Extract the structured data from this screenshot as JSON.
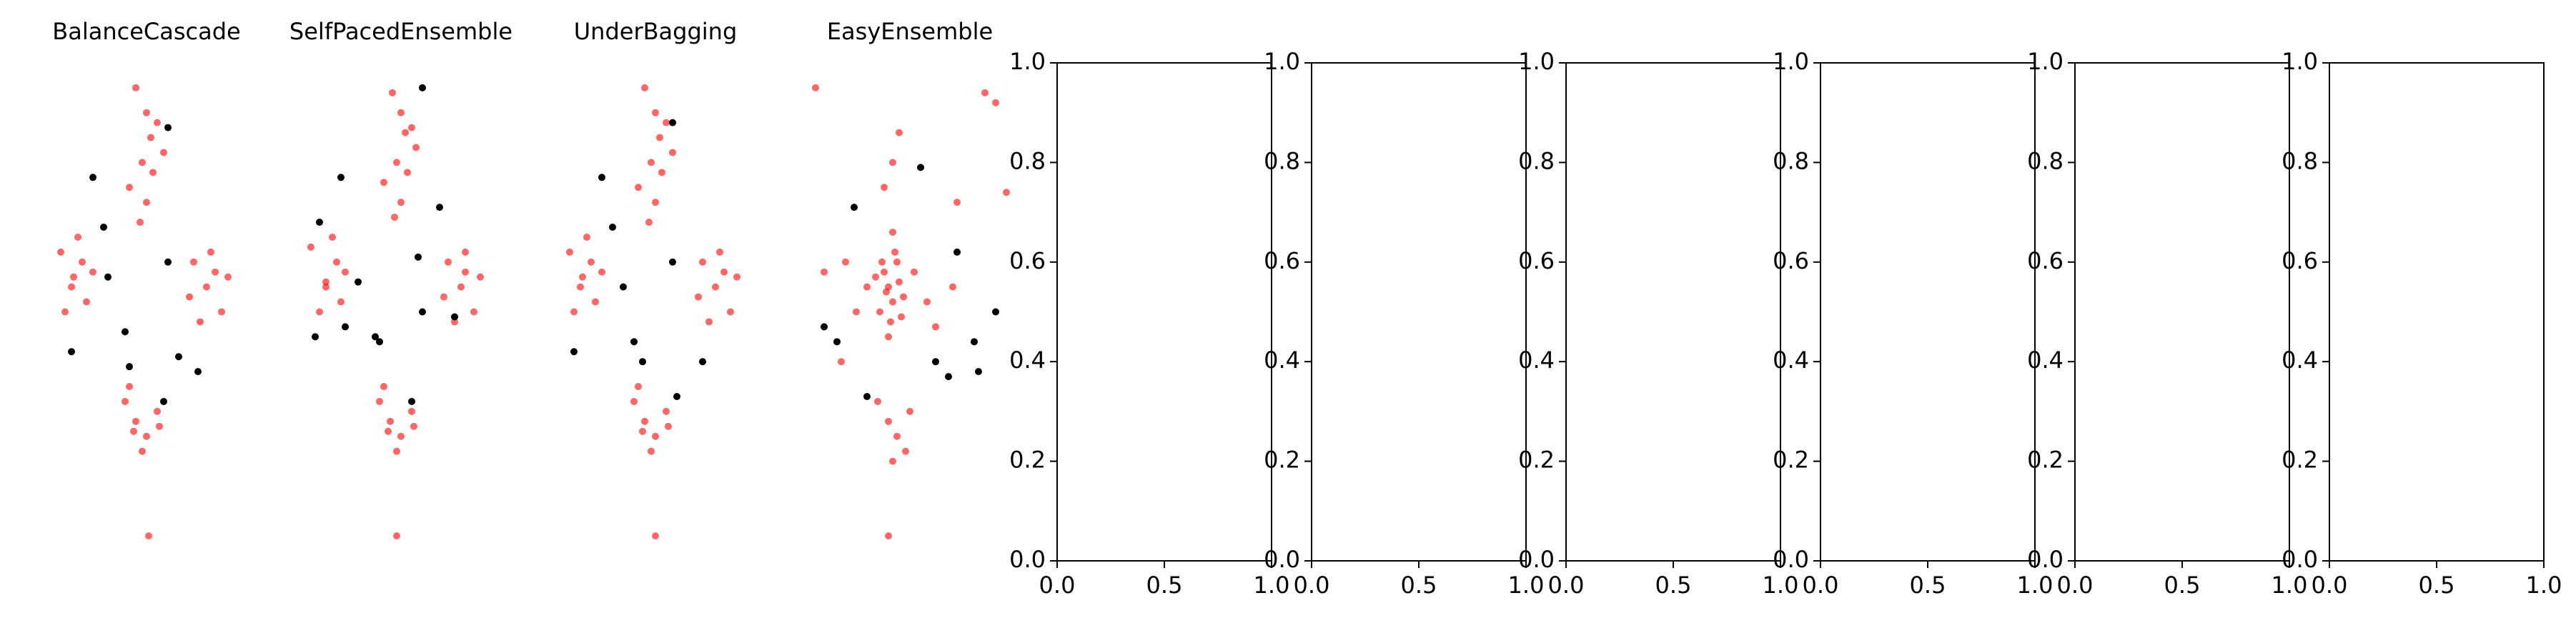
{
  "chart_data": [
    {
      "type": "scatter",
      "title": "BalanceCascade",
      "axis": false,
      "xlim": [
        0,
        1
      ],
      "ylim": [
        0,
        1
      ],
      "series": [
        {
          "color": "#ff0000",
          "x": [
            0.45,
            0.5,
            0.52,
            0.48,
            0.55,
            0.42,
            0.5,
            0.47,
            0.53,
            0.58,
            0.1,
            0.15,
            0.2,
            0.12,
            0.18,
            0.22,
            0.25,
            0.72,
            0.78,
            0.85,
            0.8,
            0.75,
            0.88,
            0.7,
            0.4,
            0.45,
            0.5,
            0.55,
            0.48,
            0.42,
            0.51,
            0.44,
            0.56,
            0.16,
            0.82
          ],
          "values": [
            0.95,
            0.9,
            0.85,
            0.8,
            0.88,
            0.75,
            0.72,
            0.68,
            0.78,
            0.82,
            0.62,
            0.55,
            0.6,
            0.5,
            0.65,
            0.52,
            0.58,
            0.6,
            0.55,
            0.5,
            0.62,
            0.48,
            0.57,
            0.53,
            0.32,
            0.28,
            0.25,
            0.3,
            0.22,
            0.35,
            0.05,
            0.26,
            0.27,
            0.57,
            0.58
          ]
        },
        {
          "color": "#000000",
          "x": [
            0.25,
            0.6,
            0.3,
            0.6,
            0.65,
            0.32,
            0.4,
            0.42,
            0.74,
            0.58,
            0.15
          ],
          "values": [
            0.77,
            0.87,
            0.67,
            0.6,
            0.41,
            0.57,
            0.46,
            0.39,
            0.38,
            0.32,
            0.42
          ]
        }
      ]
    },
    {
      "type": "scatter",
      "title": "SelfPacedEnsemble",
      "axis": false,
      "xlim": [
        0,
        1
      ],
      "ylim": [
        0,
        1
      ],
      "series": [
        {
          "color": "#ff0000",
          "x": [
            0.46,
            0.5,
            0.52,
            0.48,
            0.55,
            0.42,
            0.5,
            0.47,
            0.53,
            0.57,
            0.08,
            0.15,
            0.2,
            0.12,
            0.18,
            0.22,
            0.24,
            0.72,
            0.78,
            0.84,
            0.8,
            0.75,
            0.87,
            0.7,
            0.4,
            0.45,
            0.5,
            0.55,
            0.48,
            0.42,
            0.48,
            0.44,
            0.56,
            0.15,
            0.8
          ],
          "values": [
            0.94,
            0.9,
            0.86,
            0.8,
            0.87,
            0.76,
            0.72,
            0.69,
            0.78,
            0.83,
            0.63,
            0.55,
            0.6,
            0.5,
            0.65,
            0.52,
            0.58,
            0.6,
            0.55,
            0.5,
            0.62,
            0.48,
            0.57,
            0.53,
            0.32,
            0.28,
            0.25,
            0.3,
            0.22,
            0.35,
            0.05,
            0.26,
            0.27,
            0.56,
            0.58
          ]
        },
        {
          "color": "#000000",
          "x": [
            0.22,
            0.6,
            0.12,
            0.58,
            0.6,
            0.3,
            0.38,
            0.4,
            0.75,
            0.55,
            0.24,
            0.68,
            0.1
          ],
          "values": [
            0.77,
            0.95,
            0.68,
            0.61,
            0.5,
            0.56,
            0.45,
            0.44,
            0.49,
            0.32,
            0.47,
            0.71,
            0.45
          ]
        }
      ]
    },
    {
      "type": "scatter",
      "title": "UnderBagging",
      "axis": false,
      "xlim": [
        0,
        1
      ],
      "ylim": [
        0,
        1
      ],
      "series": [
        {
          "color": "#ff0000",
          "x": [
            0.45,
            0.5,
            0.52,
            0.48,
            0.55,
            0.42,
            0.5,
            0.47,
            0.53,
            0.58,
            0.1,
            0.15,
            0.2,
            0.12,
            0.18,
            0.22,
            0.25,
            0.72,
            0.78,
            0.85,
            0.8,
            0.75,
            0.88,
            0.7,
            0.4,
            0.45,
            0.5,
            0.55,
            0.48,
            0.42,
            0.5,
            0.44,
            0.56,
            0.16,
            0.82
          ],
          "values": [
            0.95,
            0.9,
            0.85,
            0.8,
            0.88,
            0.75,
            0.72,
            0.68,
            0.78,
            0.82,
            0.62,
            0.55,
            0.6,
            0.5,
            0.65,
            0.52,
            0.58,
            0.6,
            0.55,
            0.5,
            0.62,
            0.48,
            0.57,
            0.53,
            0.32,
            0.28,
            0.25,
            0.3,
            0.22,
            0.35,
            0.05,
            0.26,
            0.27,
            0.57,
            0.58
          ]
        },
        {
          "color": "#000000",
          "x": [
            0.25,
            0.58,
            0.3,
            0.58,
            0.72,
            0.35,
            0.4,
            0.44,
            0.6,
            0.12
          ],
          "values": [
            0.77,
            0.88,
            0.67,
            0.6,
            0.4,
            0.55,
            0.44,
            0.4,
            0.33,
            0.42
          ]
        }
      ]
    },
    {
      "type": "scatter",
      "title": "EasyEnsemble",
      "axis": false,
      "xlim": [
        0,
        1
      ],
      "ylim": [
        0,
        1
      ],
      "series": [
        {
          "color": "#ff0000",
          "x": [
            0.4,
            0.42,
            0.38,
            0.45,
            0.36,
            0.44,
            0.41,
            0.39,
            0.47,
            0.34,
            0.43,
            0.4,
            0.37,
            0.46,
            0.42,
            0.3,
            0.52,
            0.25,
            0.58,
            0.2,
            0.62,
            0.1,
            0.7,
            0.42,
            0.45,
            0.38,
            0.4,
            0.44,
            0.5,
            0.35,
            0.48,
            0.42,
            0.06,
            0.85,
            0.9,
            0.95,
            0.72,
            0.18,
            0.4
          ],
          "values": [
            0.55,
            0.52,
            0.58,
            0.56,
            0.5,
            0.6,
            0.48,
            0.54,
            0.53,
            0.57,
            0.62,
            0.45,
            0.6,
            0.49,
            0.66,
            0.55,
            0.58,
            0.5,
            0.52,
            0.6,
            0.47,
            0.58,
            0.55,
            0.8,
            0.86,
            0.75,
            0.28,
            0.25,
            0.3,
            0.32,
            0.22,
            0.2,
            0.95,
            0.94,
            0.92,
            0.74,
            0.72,
            0.4,
            0.05
          ]
        },
        {
          "color": "#000000",
          "x": [
            0.55,
            0.24,
            0.72,
            0.8,
            0.9,
            0.82,
            0.1,
            0.16,
            0.3,
            0.62,
            0.68
          ],
          "values": [
            0.79,
            0.71,
            0.62,
            0.44,
            0.5,
            0.38,
            0.47,
            0.44,
            0.33,
            0.4,
            0.37
          ]
        }
      ]
    },
    {
      "type": "scatter",
      "axis": true,
      "xlim": [
        0,
        1
      ],
      "ylim": [
        0,
        1
      ],
      "series": [],
      "xticks": [
        {
          "value": 0,
          "label": "0.0"
        },
        {
          "value": 0.5,
          "label": "0.5"
        },
        {
          "value": 1,
          "label": "1.0"
        }
      ],
      "yticks": [
        {
          "value": 0,
          "label": "0.0"
        },
        {
          "value": 0.2,
          "label": "0.2"
        },
        {
          "value": 0.4,
          "label": "0.4"
        },
        {
          "value": 0.6,
          "label": "0.6"
        },
        {
          "value": 0.8,
          "label": "0.8"
        },
        {
          "value": 1,
          "label": "1.0"
        }
      ]
    },
    {
      "type": "scatter",
      "axis": true,
      "xlim": [
        0,
        1
      ],
      "ylim": [
        0,
        1
      ],
      "series": [],
      "xticks": [
        {
          "value": 0,
          "label": "0.0"
        },
        {
          "value": 0.5,
          "label": "0.5"
        },
        {
          "value": 1,
          "label": "1.0"
        }
      ],
      "yticks": [
        {
          "value": 0,
          "label": "0.0"
        },
        {
          "value": 0.2,
          "label": "0.2"
        },
        {
          "value": 0.4,
          "label": "0.4"
        },
        {
          "value": 0.6,
          "label": "0.6"
        },
        {
          "value": 0.8,
          "label": "0.8"
        },
        {
          "value": 1,
          "label": "1.0"
        }
      ]
    },
    {
      "type": "scatter",
      "axis": true,
      "xlim": [
        0,
        1
      ],
      "ylim": [
        0,
        1
      ],
      "series": [],
      "xticks": [
        {
          "value": 0,
          "label": "0.0"
        },
        {
          "value": 0.5,
          "label": "0.5"
        },
        {
          "value": 1,
          "label": "1.0"
        }
      ],
      "yticks": [
        {
          "value": 0,
          "label": "0.0"
        },
        {
          "value": 0.2,
          "label": "0.2"
        },
        {
          "value": 0.4,
          "label": "0.4"
        },
        {
          "value": 0.6,
          "label": "0.6"
        },
        {
          "value": 0.8,
          "label": "0.8"
        },
        {
          "value": 1,
          "label": "1.0"
        }
      ]
    },
    {
      "type": "scatter",
      "axis": true,
      "xlim": [
        0,
        1
      ],
      "ylim": [
        0,
        1
      ],
      "series": [],
      "xticks": [
        {
          "value": 0,
          "label": "0.0"
        },
        {
          "value": 0.5,
          "label": "0.5"
        },
        {
          "value": 1,
          "label": "1.0"
        }
      ],
      "yticks": [
        {
          "value": 0,
          "label": "0.0"
        },
        {
          "value": 0.2,
          "label": "0.2"
        },
        {
          "value": 0.4,
          "label": "0.4"
        },
        {
          "value": 0.6,
          "label": "0.6"
        },
        {
          "value": 0.8,
          "label": "0.8"
        },
        {
          "value": 1,
          "label": "1.0"
        }
      ]
    },
    {
      "type": "scatter",
      "axis": true,
      "xlim": [
        0,
        1
      ],
      "ylim": [
        0,
        1
      ],
      "series": [],
      "xticks": [
        {
          "value": 0,
          "label": "0.0"
        },
        {
          "value": 0.5,
          "label": "0.5"
        },
        {
          "value": 1,
          "label": "1.0"
        }
      ],
      "yticks": [
        {
          "value": 0,
          "label": "0.0"
        },
        {
          "value": 0.2,
          "label": "0.2"
        },
        {
          "value": 0.4,
          "label": "0.4"
        },
        {
          "value": 0.6,
          "label": "0.6"
        },
        {
          "value": 0.8,
          "label": "0.8"
        },
        {
          "value": 1,
          "label": "1.0"
        }
      ]
    },
    {
      "type": "scatter",
      "axis": true,
      "xlim": [
        0,
        1
      ],
      "ylim": [
        0,
        1
      ],
      "series": [],
      "xticks": [
        {
          "value": 0,
          "label": "0.0"
        },
        {
          "value": 0.5,
          "label": "0.5"
        },
        {
          "value": 1,
          "label": "1.0"
        }
      ],
      "yticks": [
        {
          "value": 0,
          "label": "0.0"
        },
        {
          "value": 0.2,
          "label": "0.2"
        },
        {
          "value": 0.4,
          "label": "0.4"
        },
        {
          "value": 0.6,
          "label": "0.6"
        },
        {
          "value": 0.8,
          "label": "0.8"
        },
        {
          "value": 1,
          "label": "1.0"
        }
      ]
    }
  ]
}
